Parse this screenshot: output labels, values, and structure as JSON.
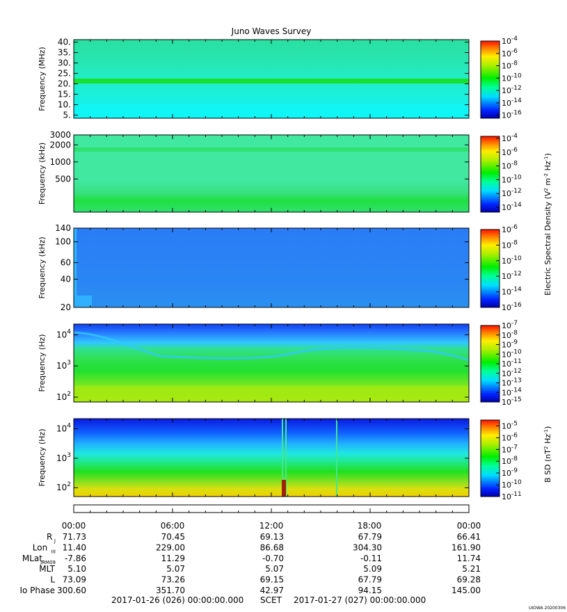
{
  "title": "Juno Waves Survey",
  "panels": [
    {
      "type": "heatmap",
      "ylabel": "Frequency (MHz)",
      "ticks": [
        {
          "label": "40.",
          "v": 40
        },
        {
          "label": "35.",
          "v": 35
        },
        {
          "label": "30.",
          "v": 30
        },
        {
          "label": "25.",
          "v": 25
        },
        {
          "label": "20.",
          "v": 20
        },
        {
          "label": "15.",
          "v": 15
        },
        {
          "label": "10.",
          "v": 10
        },
        {
          "label": "5.",
          "v": 5
        }
      ],
      "ylim": [
        3.5,
        41.2
      ],
      "ylog": false,
      "colorbar": {
        "range_exp": [
          -16.5,
          -4
        ],
        "labels": [
          {
            "b": "10",
            "e": "-4"
          },
          {
            "b": "10",
            "e": "-6"
          },
          {
            "b": "10",
            "e": "-8"
          },
          {
            "b": "10",
            "e": "-10"
          },
          {
            "b": "10",
            "e": "-12"
          },
          {
            "b": "10",
            "e": "-14"
          },
          {
            "b": "10",
            "e": "-16"
          }
        ]
      }
    },
    {
      "type": "heatmap",
      "ylabel": "Frequency (kHz)",
      "ticks": [
        {
          "label": "3000",
          "v": 3000
        },
        {
          "label": "2000",
          "v": 2000
        },
        {
          "label": "1000",
          "v": 1000
        },
        {
          "label": "500",
          "v": 500
        }
      ],
      "ylim": [
        130,
        3000
      ],
      "ylog": true,
      "colorbar": {
        "range_exp": [
          -14.7,
          -3.7
        ],
        "labels": [
          {
            "b": "10",
            "e": "-4"
          },
          {
            "b": "10",
            "e": "-6"
          },
          {
            "b": "10",
            "e": "-8"
          },
          {
            "b": "10",
            "e": "-10"
          },
          {
            "b": "10",
            "e": "-12"
          },
          {
            "b": "10",
            "e": "-14"
          }
        ]
      }
    },
    {
      "type": "heatmap",
      "ylabel": "Frequency (kHz)",
      "ticks": [
        {
          "label": "140",
          "v": 140
        },
        {
          "label": "100",
          "v": 100
        },
        {
          "label": "60",
          "v": 60
        },
        {
          "label": "40",
          "v": 40
        },
        {
          "label": "20",
          "v": 20
        }
      ],
      "ylim": [
        20,
        140
      ],
      "ylog": true,
      "colorbar": {
        "range_exp": [
          -16,
          -6
        ],
        "labels": [
          {
            "b": "10",
            "e": "-6"
          },
          {
            "b": "10",
            "e": "-8"
          },
          {
            "b": "10",
            "e": "-10"
          },
          {
            "b": "10",
            "e": "-12"
          },
          {
            "b": "10",
            "e": "-14"
          },
          {
            "b": "10",
            "e": "-16"
          }
        ]
      }
    },
    {
      "type": "heatmap",
      "ylabel": "Frequency (Hz)",
      "ticks": [
        {
          "label": "10",
          "e": "4",
          "v": 10000
        },
        {
          "label": "10",
          "e": "3",
          "v": 1000
        },
        {
          "label": "10",
          "e": "2",
          "v": 100
        }
      ],
      "ylim": [
        70,
        22000
      ],
      "ylog": true,
      "colorbar": {
        "range_exp": [
          -15,
          -7
        ],
        "labels": [
          {
            "b": "10",
            "e": "-7"
          },
          {
            "b": "10",
            "e": "-8"
          },
          {
            "b": "10",
            "e": "-9"
          },
          {
            "b": "10",
            "e": "-10"
          },
          {
            "b": "10",
            "e": "-11"
          },
          {
            "b": "10",
            "e": "-12"
          },
          {
            "b": "10",
            "e": "-13"
          },
          {
            "b": "10",
            "e": "-14"
          },
          {
            "b": "10",
            "e": "-15"
          }
        ]
      }
    },
    {
      "type": "heatmap",
      "ylabel": "Frequency (Hz)",
      "ticks": [
        {
          "label": "10",
          "e": "4",
          "v": 10000
        },
        {
          "label": "10",
          "e": "3",
          "v": 1000
        },
        {
          "label": "10",
          "e": "2",
          "v": 100
        }
      ],
      "ylim": [
        50,
        22000
      ],
      "ylog": true,
      "colorbar": {
        "range_exp": [
          -11,
          -4.5
        ],
        "labels": [
          {
            "b": "10",
            "e": "-5"
          },
          {
            "b": "10",
            "e": "-6"
          },
          {
            "b": "10",
            "e": "-7"
          },
          {
            "b": "10",
            "e": "-8"
          },
          {
            "b": "10",
            "e": "-9"
          },
          {
            "b": "10",
            "e": "-10"
          },
          {
            "b": "10",
            "e": "-11"
          }
        ]
      }
    }
  ],
  "colorbar_titles": {
    "electric": {
      "base": "Electric Spectral Density (V",
      "mid": " m",
      "end": " Hz",
      "close": ")"
    },
    "magnetic": {
      "base": "B SD (nT",
      "end": " Hz",
      "close": ")"
    }
  },
  "time_axis": {
    "labels": [
      "00:00",
      "06:00",
      "12:00",
      "18:00",
      "00:00"
    ]
  },
  "ephemeris": {
    "rows": [
      {
        "label": "R",
        "sub": "J",
        "values": [
          "71.73",
          "70.45",
          "69.13",
          "67.79",
          "66.41"
        ]
      },
      {
        "label": "Lon",
        "sub": "III",
        "values": [
          "11.40",
          "229.00",
          "86.68",
          "304.30",
          "161.90"
        ]
      },
      {
        "label": "MLat",
        "sub": "JRM09",
        "values": [
          "-7.86",
          "11.29",
          "-0.70",
          "-0.11",
          "11.74"
        ]
      },
      {
        "label": "MLT",
        "sub": "",
        "values": [
          "5.10",
          "5.07",
          "5.07",
          "5.09",
          "5.21"
        ]
      },
      {
        "label": "L",
        "sub": "",
        "values": [
          "73.09",
          "73.26",
          "69.15",
          "67.79",
          "69.28"
        ]
      },
      {
        "label": "Io Phase",
        "sub": "",
        "values": [
          "300.60",
          "351.70",
          "42.97",
          "94.15",
          "145.00"
        ]
      }
    ]
  },
  "footer": {
    "start": "2017-01-26 (026) 00:00:00.000",
    "scet": "SCET",
    "end": "2017-01-27 (027) 00:00:00.000",
    "stamp": "UIOWA 20200306"
  }
}
